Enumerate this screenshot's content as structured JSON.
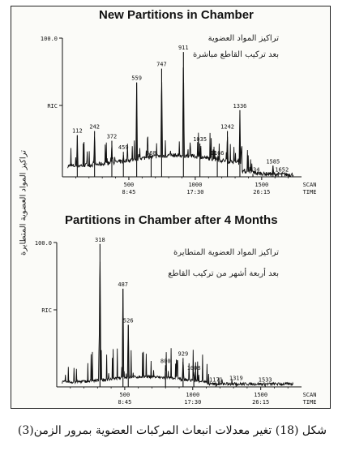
{
  "caption": "شكل (18) تغير معدلات انبعاث المركبات العضوية بمرور الزمن(3)",
  "side_label": "تراكيز المواد العضوية المتطايرة",
  "panels": [
    {
      "title": "New Partitions in Chamber",
      "arabic_line1": "تراكيز المواد العضوية",
      "arabic_line2": "بعد تركيب القاطع مباشرة",
      "ymax_label": "100.0",
      "ric_label": "RIC",
      "scan_label": "SCAN",
      "time_label": "TIME"
    },
    {
      "title": "Partitions in Chamber after 4 Months",
      "arabic_line1": "تراكيز المواد العضوية المتطايرة",
      "arabic_line2": "بعد أربعة أشهر من تركيب القاطع",
      "ymax_label": "100.0",
      "ric_label": "RIC",
      "scan_label": "SCAN",
      "time_label": "TIME"
    }
  ],
  "chart_data": [
    {
      "type": "line",
      "title": "New Partitions in Chamber",
      "xlabel": "SCAN / TIME",
      "ylabel": "RIC",
      "x_ticks": [
        {
          "scan": "500",
          "time": "8:45"
        },
        {
          "scan": "1000",
          "time": "17:30"
        },
        {
          "scan": "1500",
          "time": "26:15"
        }
      ],
      "xlim": [
        0,
        1800
      ],
      "ylim": [
        0,
        100
      ],
      "y_tick_labels": [
        "100.0",
        "RIC"
      ],
      "peaks": [
        {
          "scan": 112,
          "height": 30
        },
        {
          "scan": 242,
          "height": 33
        },
        {
          "scan": 372,
          "height": 26
        },
        {
          "scan": 459,
          "height": 18
        },
        {
          "scan": 559,
          "height": 68
        },
        {
          "scan": 668,
          "height": 14
        },
        {
          "scan": 747,
          "height": 78
        },
        {
          "scan": 911,
          "height": 90
        },
        {
          "scan": 1035,
          "height": 24
        },
        {
          "scan": 1166,
          "height": 14
        },
        {
          "scan": 1242,
          "height": 33
        },
        {
          "scan": 1336,
          "height": 48
        },
        {
          "scan": 1434,
          "height": 2
        },
        {
          "scan": 1585,
          "height": 8
        },
        {
          "scan": 1652,
          "height": 2
        }
      ]
    },
    {
      "type": "line",
      "title": "Partitions in Chamber after 4 Months",
      "xlabel": "SCAN / TIME",
      "ylabel": "RIC",
      "x_ticks": [
        {
          "scan": "500",
          "time": "8:45"
        },
        {
          "scan": "1000",
          "time": "17:30"
        },
        {
          "scan": "1500",
          "time": "26:15"
        }
      ],
      "xlim": [
        0,
        1800
      ],
      "ylim": [
        0,
        100
      ],
      "y_tick_labels": [
        "100.0",
        "RIC"
      ],
      "peaks": [
        {
          "scan": 318,
          "height": 99
        },
        {
          "scan": 487,
          "height": 68
        },
        {
          "scan": 526,
          "height": 43
        },
        {
          "scan": 800,
          "height": 15
        },
        {
          "scan": 929,
          "height": 20
        },
        {
          "scan": 1008,
          "height": 10
        },
        {
          "scan": 1171,
          "height": 2
        },
        {
          "scan": 1319,
          "height": 3
        },
        {
          "scan": 1533,
          "height": 2
        }
      ]
    }
  ]
}
